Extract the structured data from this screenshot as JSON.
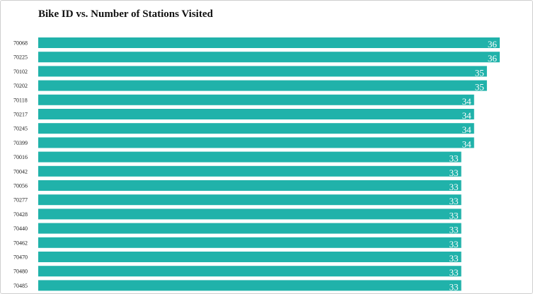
{
  "chart_data": {
    "type": "bar",
    "orientation": "horizontal",
    "title": "Bike ID vs. Number of Stations Visited",
    "xlabel": "",
    "ylabel": "",
    "categories": [
      "70068",
      "70225",
      "70102",
      "70202",
      "70118",
      "70217",
      "70245",
      "70399",
      "70016",
      "70042",
      "70056",
      "70277",
      "70428",
      "70440",
      "70462",
      "70470",
      "70480",
      "70485"
    ],
    "values": [
      36,
      36,
      35,
      35,
      34,
      34,
      34,
      34,
      33,
      33,
      33,
      33,
      33,
      33,
      33,
      33,
      33,
      33
    ],
    "xlim": [
      0,
      36
    ],
    "grid": false,
    "bar_color": "#20b2aa",
    "label_color": "#ffffff"
  }
}
